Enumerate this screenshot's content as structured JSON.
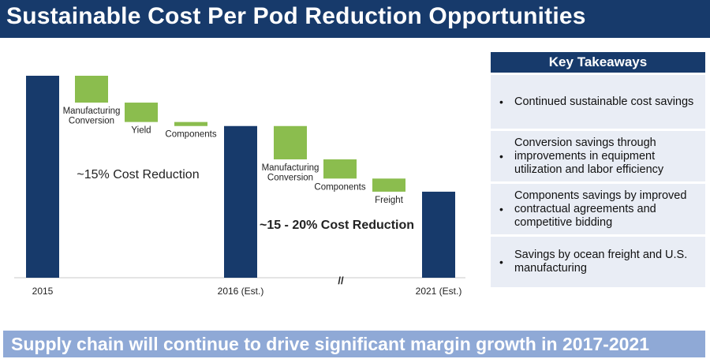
{
  "title": "Sustainable Cost Per Pod Reduction Opportunities",
  "colors": {
    "navy": "#173a6b",
    "green": "#8bbd4e",
    "panel_bg": "#e9edf5",
    "footer_bg": "#8fa9d6"
  },
  "chart_data": {
    "type": "waterfall",
    "ylim": [
      0,
      100
    ],
    "grid": false,
    "categories": [
      "2015",
      "Manufacturing Conversion",
      "Yield",
      "Components",
      "2016 (Est.)",
      "Manufacturing Conversion",
      "Components",
      "Freight",
      "2021 (Est.)"
    ],
    "bars": [
      {
        "kind": "total",
        "label": "2015",
        "value": 100
      },
      {
        "kind": "delta",
        "label": "Manufacturing Conversion",
        "value": -13.3
      },
      {
        "kind": "delta",
        "label": "Yield",
        "value": -9.6
      },
      {
        "kind": "delta",
        "label": "Components",
        "value": -2.0
      },
      {
        "kind": "total",
        "label": "2016 (Est.)",
        "value": 75.1
      },
      {
        "kind": "delta",
        "label": "Manufacturing Conversion",
        "value": -16.5
      },
      {
        "kind": "delta",
        "label": "Components",
        "value": -9.5
      },
      {
        "kind": "delta",
        "label": "Freight",
        "value": -6.5
      },
      {
        "kind": "total",
        "label": "2021 (Est.)",
        "value": 42.6
      }
    ],
    "annotations": [
      "~15% Cost Reduction",
      "~15 - 20% Cost Reduction",
      "//"
    ]
  },
  "takeaways": {
    "header": "Key Takeaways",
    "items": [
      "Continued sustainable cost savings",
      "Conversion savings through improvements in equipment utilization and labor efficiency",
      "Components savings by improved contractual agreements and competitive bidding",
      "Savings by ocean freight and U.S. manufacturing"
    ]
  },
  "footer": "Supply chain will continue to drive significant margin growth in 2017-2021"
}
